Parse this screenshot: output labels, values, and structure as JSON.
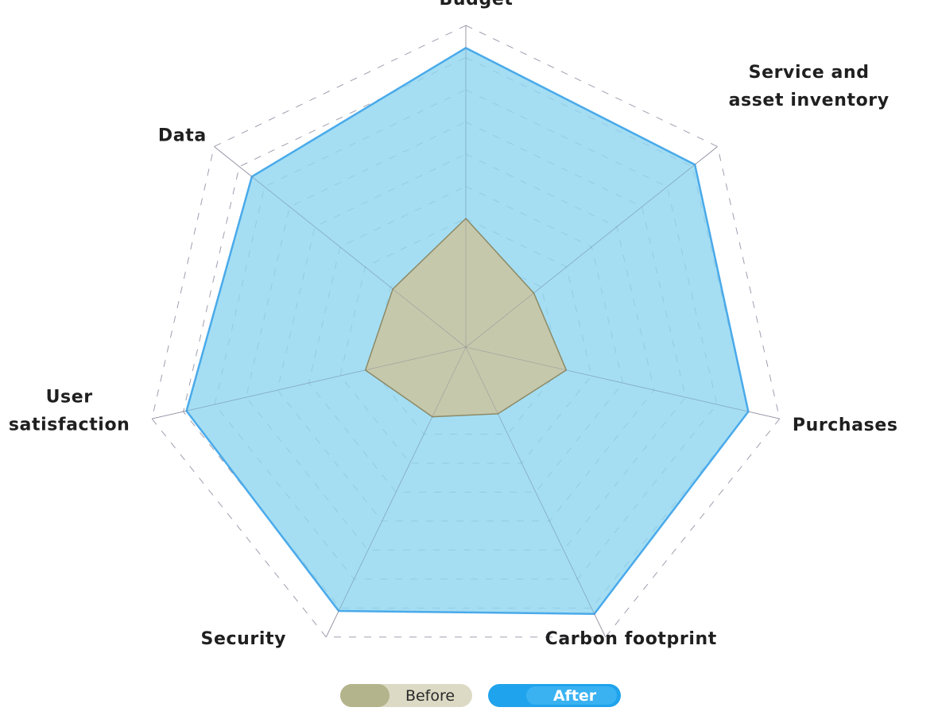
{
  "chart_data": {
    "type": "radar",
    "axes": [
      {
        "label_lines": [
          "Budget"
        ]
      },
      {
        "label_lines": [
          "Service and",
          "asset inventory"
        ]
      },
      {
        "label_lines": [
          "Purchases"
        ]
      },
      {
        "label_lines": [
          "Carbon footprint"
        ]
      },
      {
        "label_lines": [
          "Security"
        ]
      },
      {
        "label_lines": [
          "User",
          "satisfaction"
        ]
      },
      {
        "label_lines": [
          "Data"
        ]
      }
    ],
    "range": [
      0,
      10
    ],
    "grid_levels": 10,
    "grid": true,
    "legend_position": "bottom",
    "series": [
      {
        "name": "Before",
        "color": "#b4b48c",
        "fill": "#c9c6a6",
        "values": [
          4.0,
          2.7,
          3.2,
          2.3,
          2.4,
          3.2,
          2.9
        ]
      },
      {
        "name": "After",
        "color": "#4aaaea",
        "fill": "#8fd6f0",
        "values": [
          9.3,
          9.1,
          9.0,
          9.2,
          9.1,
          8.9,
          8.5
        ]
      }
    ]
  },
  "legend": {
    "before_label": "Before",
    "after_label": "After",
    "before_color": "#b4b48c",
    "after_color": "#1fa3ec"
  }
}
